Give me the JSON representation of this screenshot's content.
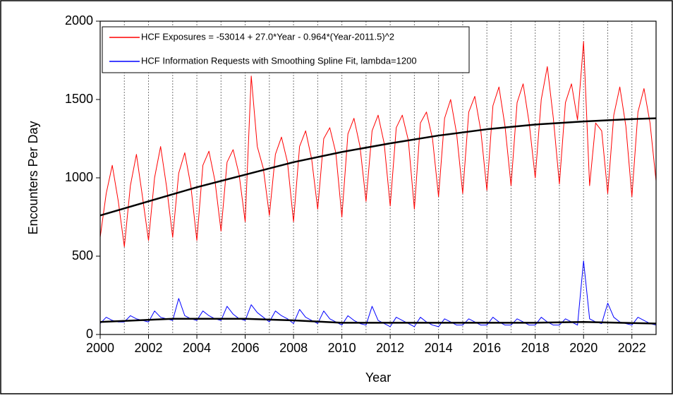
{
  "chart_data": {
    "type": "line",
    "xlabel": "Year",
    "ylabel": "Encounters Per Day",
    "xlim": [
      2000,
      2023
    ],
    "xticks": [
      2000,
      2002,
      2004,
      2006,
      2008,
      2010,
      2012,
      2014,
      2016,
      2018,
      2020,
      2022
    ],
    "xgrid_lines": [
      2001,
      2002,
      2003,
      2004,
      2005,
      2006,
      2007,
      2008,
      2009,
      2010,
      2011,
      2012,
      2013,
      2014,
      2015,
      2016,
      2017,
      2018,
      2019,
      2020,
      2021,
      2022
    ],
    "ylim": [
      0,
      2000
    ],
    "yticks": [
      0,
      500,
      1000,
      1500,
      2000
    ],
    "x": [
      2000,
      2000.25,
      2000.5,
      2000.75,
      2001,
      2001.25,
      2001.5,
      2001.75,
      2002,
      2002.25,
      2002.5,
      2002.75,
      2003,
      2003.25,
      2003.5,
      2003.75,
      2004,
      2004.25,
      2004.5,
      2004.75,
      2005,
      2005.25,
      2005.5,
      2005.75,
      2006,
      2006.25,
      2006.5,
      2006.75,
      2007,
      2007.25,
      2007.5,
      2007.75,
      2008,
      2008.25,
      2008.5,
      2008.75,
      2009,
      2009.25,
      2009.5,
      2009.75,
      2010,
      2010.25,
      2010.5,
      2010.75,
      2011,
      2011.25,
      2011.5,
      2011.75,
      2012,
      2012.25,
      2012.5,
      2012.75,
      2013,
      2013.25,
      2013.5,
      2013.75,
      2014,
      2014.25,
      2014.5,
      2014.75,
      2015,
      2015.25,
      2015.5,
      2015.75,
      2016,
      2016.25,
      2016.5,
      2016.75,
      2017,
      2017.25,
      2017.5,
      2017.75,
      2018,
      2018.25,
      2018.5,
      2018.75,
      2019,
      2019.25,
      2019.5,
      2019.75,
      2020,
      2020.25,
      2020.5,
      2020.75,
      2021,
      2021.25,
      2021.5,
      2021.75,
      2022,
      2022.25,
      2022.5,
      2022.75,
      2023
    ],
    "series": [
      {
        "name": "HCF Exposures = -53014 + 27.0*Year - 0.964*(Year-2011.5)^2",
        "color": "#ff0000",
        "values": [
          620,
          900,
          1080,
          850,
          560,
          950,
          1150,
          880,
          600,
          1000,
          1200,
          940,
          620,
          1030,
          1160,
          950,
          600,
          1080,
          1170,
          980,
          660,
          1100,
          1180,
          1020,
          720,
          1650,
          1200,
          1060,
          760,
          1150,
          1260,
          1100,
          720,
          1200,
          1300,
          1120,
          800,
          1250,
          1320,
          1160,
          750,
          1280,
          1380,
          1200,
          850,
          1300,
          1400,
          1220,
          820,
          1320,
          1400,
          1240,
          800,
          1350,
          1420,
          1250,
          880,
          1380,
          1500,
          1280,
          900,
          1420,
          1520,
          1300,
          920,
          1460,
          1580,
          1330,
          950,
          1480,
          1600,
          1350,
          1000,
          1500,
          1710,
          1380,
          960,
          1480,
          1600,
          1370,
          1870,
          950,
          1350,
          1300,
          900,
          1400,
          1580,
          1330,
          880,
          1420,
          1570,
          1350,
          980
        ]
      },
      {
        "name": "HCF Information Requests with Smoothing Spline Fit, lambda=1200",
        "color": "#0000ff",
        "values": [
          70,
          110,
          90,
          80,
          80,
          120,
          100,
          90,
          80,
          150,
          110,
          100,
          90,
          230,
          120,
          100,
          90,
          150,
          120,
          100,
          90,
          180,
          130,
          100,
          90,
          190,
          140,
          110,
          80,
          150,
          120,
          100,
          70,
          160,
          110,
          90,
          70,
          150,
          100,
          80,
          60,
          120,
          90,
          70,
          60,
          180,
          90,
          70,
          50,
          110,
          90,
          70,
          50,
          110,
          80,
          60,
          50,
          100,
          80,
          60,
          60,
          100,
          80,
          60,
          60,
          110,
          80,
          60,
          60,
          100,
          80,
          60,
          60,
          110,
          80,
          60,
          60,
          100,
          80,
          60,
          470,
          100,
          80,
          70,
          200,
          110,
          80,
          70,
          60,
          110,
          90,
          70,
          60
        ]
      }
    ],
    "fits": [
      {
        "color": "#000000",
        "x": [
          2000,
          2002,
          2004,
          2006,
          2008,
          2010,
          2012,
          2014,
          2016,
          2018,
          2020,
          2022,
          2023
        ],
        "values": [
          760,
          850,
          940,
          1020,
          1100,
          1165,
          1220,
          1270,
          1310,
          1340,
          1360,
          1375,
          1380
        ]
      },
      {
        "color": "#000000",
        "x": [
          2000,
          2003,
          2006,
          2008,
          2010,
          2014,
          2018,
          2020,
          2023
        ],
        "values": [
          80,
          100,
          100,
          90,
          75,
          75,
          75,
          80,
          70
        ]
      }
    ]
  }
}
